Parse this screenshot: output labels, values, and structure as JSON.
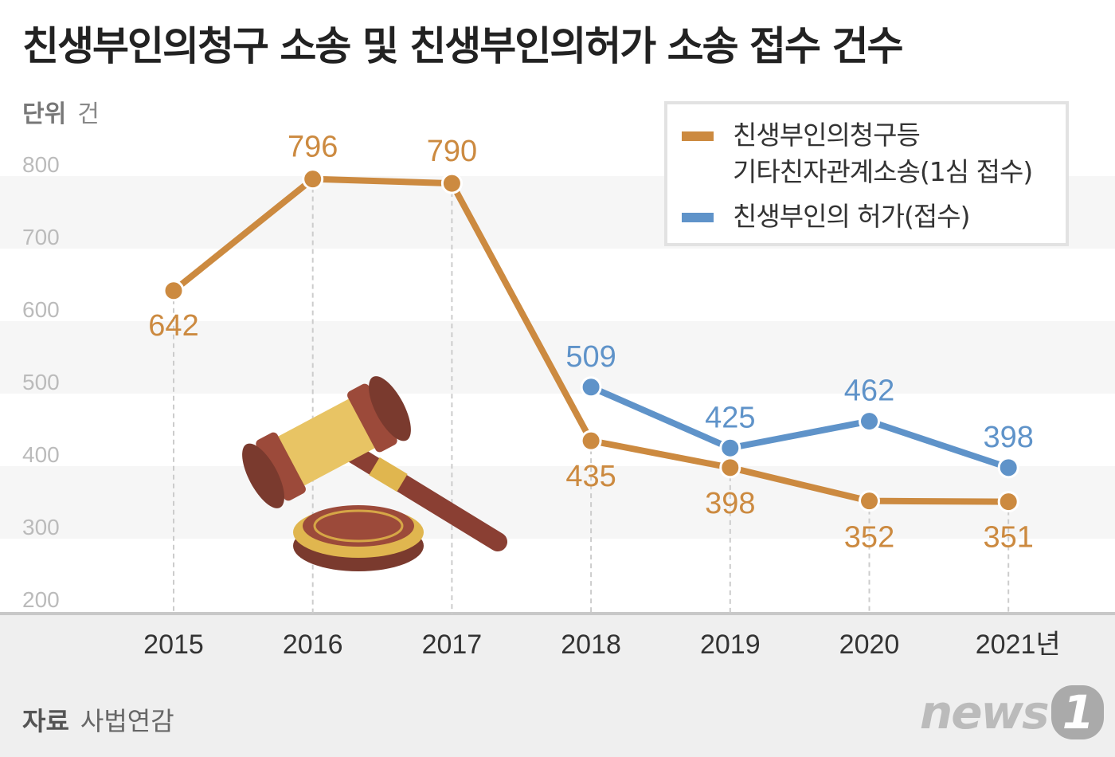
{
  "title": "친생부인의청구 소송 및 친생부인의허가 소송 접수 건수",
  "unit": {
    "label": "단위",
    "value": "건"
  },
  "footer": {
    "label": "자료",
    "value": "사법연감"
  },
  "logo": "news1",
  "chart_data": {
    "type": "line",
    "categories": [
      "2015",
      "2016",
      "2017",
      "2018",
      "2019",
      "2020",
      "2021년"
    ],
    "ylim": [
      200,
      800
    ],
    "yticks": [
      800,
      700,
      600,
      500,
      400,
      300,
      200
    ],
    "series": [
      {
        "name": "친생부인의청구등 기타친자관계소송(1심 접수)",
        "name_lines": [
          "친생부인의청구등",
          "기타친자관계소송(1심 접수)"
        ],
        "color": "#cc8a40",
        "values": [
          642,
          796,
          790,
          435,
          398,
          352,
          351
        ]
      },
      {
        "name": "친생부인의 허가(접수)",
        "name_lines": [
          "친생부인의 허가(접수)"
        ],
        "color": "#5f93c9",
        "values": [
          null,
          null,
          null,
          509,
          425,
          462,
          398
        ]
      }
    ],
    "legend": "top-right",
    "grid": "alternating bands"
  }
}
